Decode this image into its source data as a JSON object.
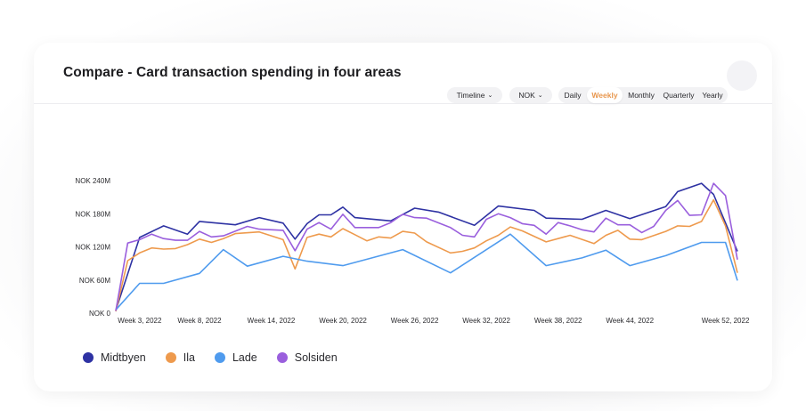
{
  "card": {
    "title": "Compare - Card transaction spending in four areas"
  },
  "controls": {
    "timeline_label": "Timeline",
    "currency_label": "NOK",
    "periods": [
      "Daily",
      "Weekly",
      "Monthly",
      "Quarterly",
      "Yearly"
    ],
    "active_period": "Weekly"
  },
  "chart_data": {
    "type": "line",
    "title": "Compare - Card transaction spending in four areas",
    "xlabel": "",
    "ylabel": "",
    "ylim": [
      0,
      240
    ],
    "yticks": [
      0,
      60,
      120,
      180,
      240
    ],
    "ytick_labels": [
      "NOK 0",
      "NOK 60M",
      "NOK 120M",
      "NOK 180M",
      "NOK 240M"
    ],
    "xlim": [
      1,
      53
    ],
    "xticks": [
      3,
      8,
      14,
      20,
      26,
      32,
      38,
      44,
      52
    ],
    "xtick_labels": [
      "Week 3, 2022",
      "Week 8, 2022",
      "Week 14, 2022",
      "Week 20, 2022",
      "Week 26, 2022",
      "Week 32, 2022",
      "Week 38, 2022",
      "Week 44, 2022",
      "Week 52, 2022"
    ],
    "grid": false,
    "legend_position": "bottom-left",
    "series": [
      {
        "name": "Midtbyen",
        "color": "#2e32a3",
        "points": [
          [
            1,
            5
          ],
          [
            3,
            137
          ],
          [
            5,
            158
          ],
          [
            7,
            143
          ],
          [
            8,
            166
          ],
          [
            11,
            160
          ],
          [
            13,
            173
          ],
          [
            15,
            163
          ],
          [
            16,
            134
          ],
          [
            17,
            162
          ],
          [
            18,
            178
          ],
          [
            19,
            178
          ],
          [
            20,
            192
          ],
          [
            21,
            173
          ],
          [
            24,
            167
          ],
          [
            26,
            190
          ],
          [
            28,
            183
          ],
          [
            31,
            159
          ],
          [
            33,
            194
          ],
          [
            36,
            186
          ],
          [
            37,
            172
          ],
          [
            40,
            170
          ],
          [
            42,
            186
          ],
          [
            44,
            171
          ],
          [
            47,
            193
          ],
          [
            48,
            220
          ],
          [
            50,
            235
          ],
          [
            51,
            215
          ],
          [
            53,
            112
          ]
        ]
      },
      {
        "name": "Ila",
        "color": "#ee9a4d",
        "points": [
          [
            1,
            3
          ],
          [
            2,
            95
          ],
          [
            3,
            109
          ],
          [
            4,
            118
          ],
          [
            5,
            116
          ],
          [
            6,
            117
          ],
          [
            7,
            124
          ],
          [
            8,
            134
          ],
          [
            9,
            128
          ],
          [
            10,
            135
          ],
          [
            11,
            144
          ],
          [
            13,
            147
          ],
          [
            15,
            133
          ],
          [
            16,
            80
          ],
          [
            17,
            137
          ],
          [
            18,
            143
          ],
          [
            19,
            138
          ],
          [
            20,
            153
          ],
          [
            21,
            142
          ],
          [
            22,
            131
          ],
          [
            23,
            138
          ],
          [
            24,
            136
          ],
          [
            25,
            148
          ],
          [
            26,
            145
          ],
          [
            27,
            129
          ],
          [
            29,
            109
          ],
          [
            30,
            112
          ],
          [
            31,
            118
          ],
          [
            32,
            131
          ],
          [
            33,
            141
          ],
          [
            34,
            156
          ],
          [
            35,
            149
          ],
          [
            37,
            129
          ],
          [
            39,
            141
          ],
          [
            41,
            126
          ],
          [
            42,
            141
          ],
          [
            43,
            150
          ],
          [
            44,
            134
          ],
          [
            45,
            133
          ],
          [
            47,
            148
          ],
          [
            48,
            158
          ],
          [
            49,
            157
          ],
          [
            50,
            166
          ],
          [
            51,
            205
          ],
          [
            52,
            158
          ],
          [
            53,
            73
          ]
        ]
      },
      {
        "name": "Lade",
        "color": "#4f9bee",
        "points": [
          [
            1,
            6
          ],
          [
            3,
            54
          ],
          [
            5,
            54
          ],
          [
            8,
            72
          ],
          [
            10,
            115
          ],
          [
            12,
            85
          ],
          [
            15,
            103
          ],
          [
            17,
            94
          ],
          [
            20,
            86
          ],
          [
            25,
            115
          ],
          [
            29,
            73
          ],
          [
            34,
            143
          ],
          [
            37,
            86
          ],
          [
            40,
            100
          ],
          [
            42,
            114
          ],
          [
            44,
            86
          ],
          [
            47,
            104
          ],
          [
            50,
            128
          ],
          [
            52,
            128
          ],
          [
            53,
            59
          ]
        ]
      },
      {
        "name": "Solsiden",
        "color": "#9a5fdd",
        "points": [
          [
            1,
            4
          ],
          [
            2,
            127
          ],
          [
            3,
            133
          ],
          [
            4,
            143
          ],
          [
            5,
            135
          ],
          [
            6,
            132
          ],
          [
            7,
            132
          ],
          [
            8,
            148
          ],
          [
            9,
            138
          ],
          [
            10,
            140
          ],
          [
            12,
            157
          ],
          [
            13,
            152
          ],
          [
            15,
            150
          ],
          [
            16,
            113
          ],
          [
            17,
            152
          ],
          [
            18,
            164
          ],
          [
            19,
            152
          ],
          [
            20,
            179
          ],
          [
            21,
            155
          ],
          [
            23,
            155
          ],
          [
            24,
            164
          ],
          [
            25,
            179
          ],
          [
            26,
            173
          ],
          [
            27,
            172
          ],
          [
            29,
            155
          ],
          [
            30,
            141
          ],
          [
            31,
            138
          ],
          [
            32,
            170
          ],
          [
            33,
            180
          ],
          [
            34,
            173
          ],
          [
            35,
            162
          ],
          [
            36,
            159
          ],
          [
            37,
            143
          ],
          [
            38,
            164
          ],
          [
            39,
            158
          ],
          [
            40,
            151
          ],
          [
            41,
            147
          ],
          [
            42,
            172
          ],
          [
            43,
            160
          ],
          [
            44,
            160
          ],
          [
            45,
            146
          ],
          [
            46,
            157
          ],
          [
            47,
            186
          ],
          [
            48,
            204
          ],
          [
            49,
            177
          ],
          [
            50,
            178
          ],
          [
            51,
            235
          ],
          [
            52,
            213
          ],
          [
            53,
            97
          ]
        ]
      }
    ]
  }
}
